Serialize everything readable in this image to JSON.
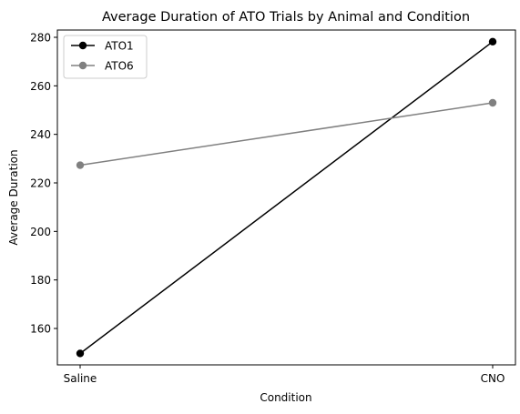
{
  "chart_data": {
    "type": "line",
    "title": "Average Duration of ATO Trials by Animal and Condition",
    "xlabel": "Condition",
    "ylabel": "Average Duration",
    "categories": [
      "Saline",
      "CNO"
    ],
    "ylim": [
      145,
      283
    ],
    "yticks": [
      160,
      180,
      200,
      220,
      240,
      260,
      280
    ],
    "grid": false,
    "legend_position": "top-left",
    "series": [
      {
        "name": "ATO1",
        "values": [
          149.7,
          278.2
        ],
        "color": "#000000"
      },
      {
        "name": "ATO6",
        "values": [
          227.3,
          253.0
        ],
        "color": "#808080"
      }
    ]
  }
}
